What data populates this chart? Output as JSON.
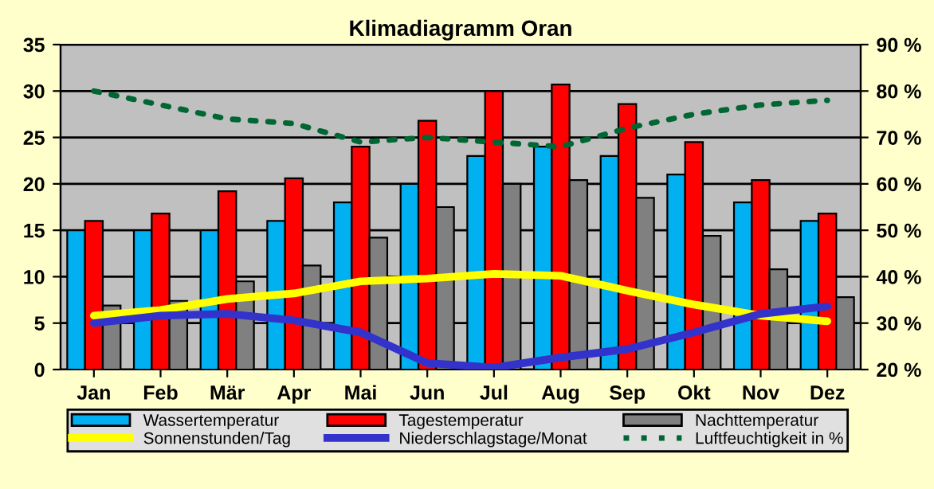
{
  "chart_data": {
    "type": "bar",
    "title": "Klimadiagramm Oran",
    "categories": [
      "Jan",
      "Feb",
      "Mär",
      "Apr",
      "Mai",
      "Jun",
      "Jul",
      "Aug",
      "Sep",
      "Okt",
      "Nov",
      "Dez"
    ],
    "series": [
      {
        "name": "Wassertemperatur",
        "color": "#00b0f0",
        "values": [
          15,
          15,
          15,
          16,
          18,
          20,
          23,
          24,
          23,
          21,
          18,
          16
        ]
      },
      {
        "name": "Tagestemperatur",
        "color": "#ff0000",
        "values": [
          16,
          16.8,
          19.2,
          20.6,
          24,
          26.8,
          30,
          30.7,
          28.6,
          24.5,
          20.4,
          16.8
        ]
      },
      {
        "name": "Nachttemperatur",
        "color": "#808080",
        "values": [
          6.9,
          7.4,
          9.5,
          11.2,
          14.2,
          17.5,
          20,
          20.4,
          18.5,
          14.4,
          10.8,
          7.8
        ]
      },
      {
        "name": "Sonnenstunden/Tag",
        "type": "line",
        "color": "#ffff00",
        "line_style": "solid",
        "values": [
          5.8,
          6.4,
          7.6,
          8.2,
          9.5,
          9.8,
          10.3,
          10.1,
          8.5,
          7.0,
          5.8,
          5.2
        ]
      },
      {
        "name": "Niederschlagstage/Monat",
        "type": "line",
        "color": "#3333cc",
        "line_style": "solid",
        "values": [
          5.0,
          5.8,
          6.0,
          5.3,
          4.0,
          0.7,
          0.2,
          1.3,
          2.2,
          4.0,
          6.0,
          6.8
        ]
      },
      {
        "name": "Luftfeuchtigkeit in %",
        "type": "line",
        "color": "#006633",
        "line_style": "dotted",
        "axis": "y2",
        "values": [
          80,
          77,
          74,
          73,
          69,
          70,
          69,
          68,
          72,
          75,
          77,
          78
        ]
      }
    ],
    "ylim": [
      0,
      35
    ],
    "yticks": [
      0,
      5,
      10,
      15,
      20,
      25,
      30,
      35
    ],
    "y2lim": [
      20,
      90
    ],
    "y2ticks": [
      {
        "value": 20,
        "label": "20 %"
      },
      {
        "value": 30,
        "label": "30 %"
      },
      {
        "value": 40,
        "label": "40 %"
      },
      {
        "value": 50,
        "label": "50 %"
      },
      {
        "value": 60,
        "label": "60 %"
      },
      {
        "value": 70,
        "label": "70 %"
      },
      {
        "value": 80,
        "label": "80 %"
      },
      {
        "value": 90,
        "label": "90 %"
      }
    ],
    "grid": "y",
    "legend": "bottom",
    "marker": "none"
  }
}
